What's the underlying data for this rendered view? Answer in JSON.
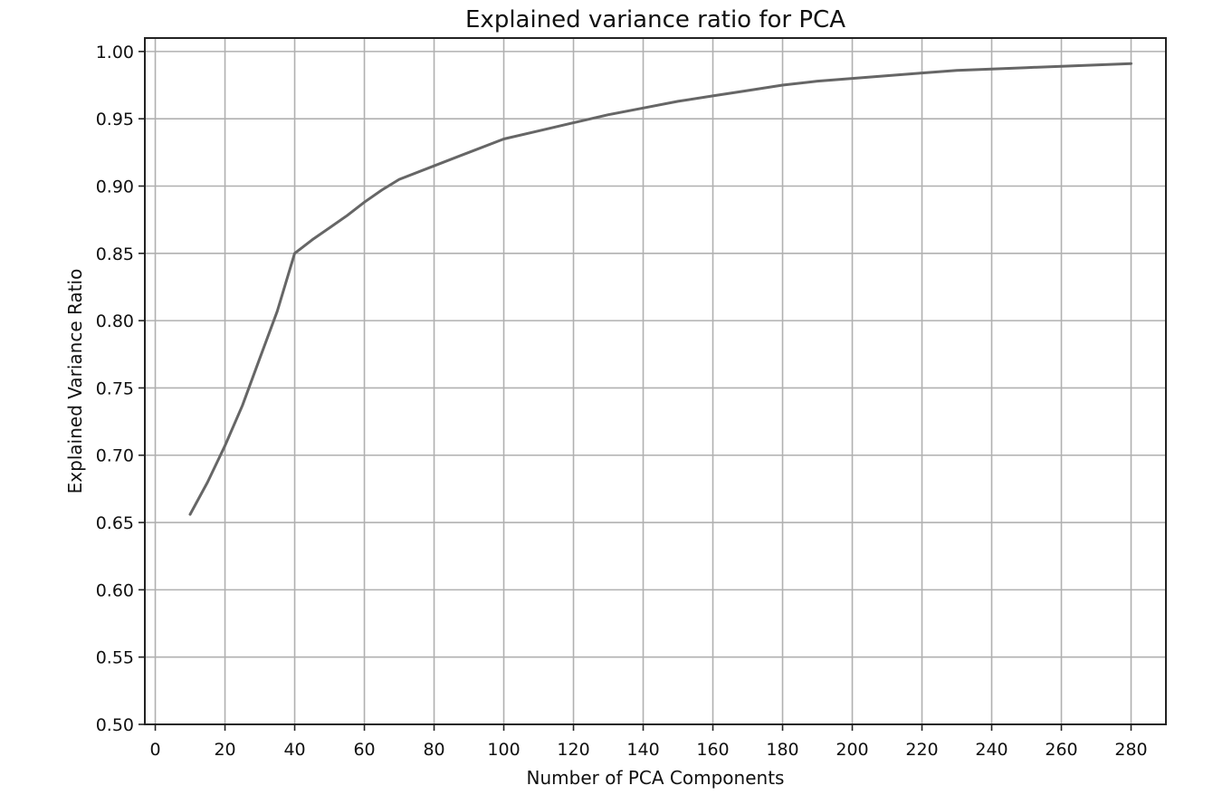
{
  "chart_data": {
    "type": "line",
    "title": "Explained variance ratio for PCA",
    "xlabel": "Number of PCA Components",
    "ylabel": "Explained Variance Ratio",
    "xlim": [
      -3,
      290
    ],
    "ylim": [
      0.5,
      1.01
    ],
    "xticks": [
      0,
      20,
      40,
      60,
      80,
      100,
      120,
      140,
      160,
      180,
      200,
      220,
      240,
      260,
      280
    ],
    "xtick_labels": [
      "0",
      "20",
      "40",
      "60",
      "80",
      "100",
      "120",
      "140",
      "160",
      "180",
      "200",
      "220",
      "240",
      "260",
      "280"
    ],
    "yticks": [
      0.5,
      0.55,
      0.6,
      0.65,
      0.7,
      0.75,
      0.8,
      0.85,
      0.9,
      0.95,
      1.0
    ],
    "ytick_labels": [
      "0.50",
      "0.55",
      "0.60",
      "0.65",
      "0.70",
      "0.75",
      "0.80",
      "0.85",
      "0.90",
      "0.95",
      "1.00"
    ],
    "grid": true,
    "series": [
      {
        "color": "#666666",
        "x": [
          10,
          15,
          20,
          25,
          30,
          35,
          40,
          45,
          50,
          55,
          60,
          65,
          70,
          80,
          90,
          100,
          110,
          120,
          130,
          140,
          150,
          160,
          170,
          180,
          190,
          200,
          210,
          220,
          230,
          240,
          250,
          260,
          270,
          280
        ],
        "y": [
          0.656,
          0.68,
          0.707,
          0.737,
          0.772,
          0.807,
          0.85,
          0.86,
          0.869,
          0.878,
          0.888,
          0.897,
          0.905,
          0.915,
          0.925,
          0.935,
          0.941,
          0.947,
          0.953,
          0.958,
          0.963,
          0.967,
          0.971,
          0.975,
          0.978,
          0.98,
          0.982,
          0.984,
          0.986,
          0.987,
          0.988,
          0.989,
          0.99,
          0.991
        ]
      }
    ]
  }
}
